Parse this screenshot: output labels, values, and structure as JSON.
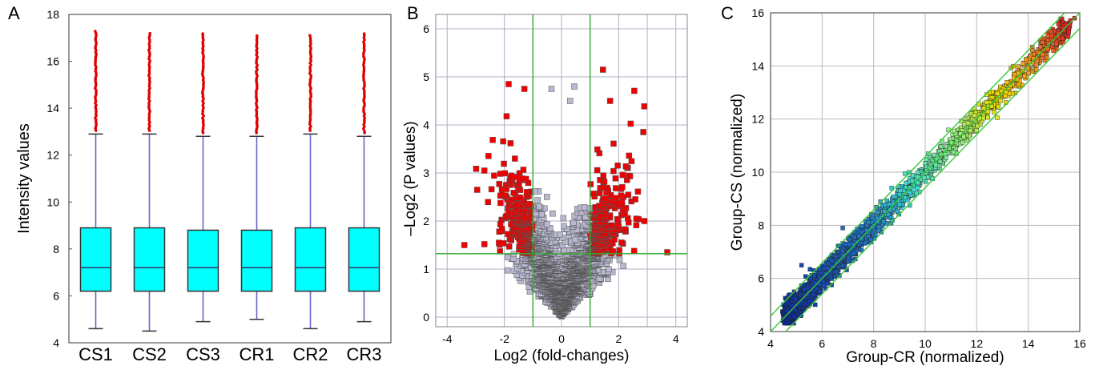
{
  "panels": [
    {
      "letter": "A"
    },
    {
      "letter": "B"
    },
    {
      "letter": "C"
    }
  ],
  "chart_data": [
    {
      "type": "box",
      "title": "",
      "xlabel": "",
      "ylabel": "Intensity values",
      "ylim": [
        4,
        18
      ],
      "yticks": [
        4,
        6,
        8,
        10,
        12,
        14,
        16,
        18
      ],
      "grid": false,
      "colors": {
        "box": "#00ffff",
        "whisker": "#6666cc",
        "outlier": "#e00000"
      },
      "categories": [
        "CS1",
        "CS2",
        "CS3",
        "CR1",
        "CR2",
        "CR3"
      ],
      "boxes": [
        {
          "name": "CS1",
          "whisker_low": 4.6,
          "q1": 6.2,
          "median": 7.2,
          "q3": 8.9,
          "whisker_high": 12.9,
          "outlier_max": 17.3
        },
        {
          "name": "CS2",
          "whisker_low": 4.5,
          "q1": 6.2,
          "median": 7.2,
          "q3": 8.9,
          "whisker_high": 12.9,
          "outlier_max": 17.2
        },
        {
          "name": "CS3",
          "whisker_low": 4.9,
          "q1": 6.2,
          "median": 7.2,
          "q3": 8.8,
          "whisker_high": 12.8,
          "outlier_max": 17.2
        },
        {
          "name": "CR1",
          "whisker_low": 5.0,
          "q1": 6.2,
          "median": 7.2,
          "q3": 8.8,
          "whisker_high": 12.8,
          "outlier_max": 17.1
        },
        {
          "name": "CR2",
          "whisker_low": 4.6,
          "q1": 6.2,
          "median": 7.2,
          "q3": 8.9,
          "whisker_high": 12.9,
          "outlier_max": 17.1
        },
        {
          "name": "CR3",
          "whisker_low": 4.9,
          "q1": 6.2,
          "median": 7.2,
          "q3": 8.9,
          "whisker_high": 12.8,
          "outlier_max": 17.2
        }
      ]
    },
    {
      "type": "scatter",
      "title": "",
      "xlabel": "Log2 (fold-changes)",
      "ylabel": "–Log2  (P values)",
      "xlim": [
        -4.4,
        4.4
      ],
      "ylim": [
        -0.2,
        6.3
      ],
      "xticks": [
        -4,
        -2,
        0,
        2,
        4
      ],
      "yticks": [
        0,
        1,
        2,
        3,
        4,
        5,
        6
      ],
      "grid": true,
      "thresholds": {
        "x": [
          -1,
          1
        ],
        "y": 1.32
      },
      "colors": {
        "significant": "#ee0000",
        "not_significant": "#b8b8d0",
        "threshold": "#33aa33",
        "grid": "#b0b0c8"
      },
      "series": [],
      "notable_points": [
        {
          "x": 1.45,
          "y": 5.15
        },
        {
          "x": -1.85,
          "y": 4.85
        },
        {
          "x": 0.45,
          "y": 4.8
        },
        {
          "x": -1.3,
          "y": 4.75
        },
        {
          "x": -0.35,
          "y": 4.75
        },
        {
          "x": 1.7,
          "y": 4.5
        },
        {
          "x": 0.3,
          "y": 4.5
        },
        {
          "x": -2.7,
          "y": 3.05
        },
        {
          "x": -2.95,
          "y": 2.65
        },
        {
          "x": 2.9,
          "y": 2.0
        },
        {
          "x": 3.7,
          "y": 1.35
        },
        {
          "x": -3.4,
          "y": 1.5
        }
      ]
    },
    {
      "type": "scatter",
      "title": "",
      "xlabel": "Group-CR (normalized)",
      "ylabel": "Group-CS (normalized)",
      "xlim": [
        4,
        16
      ],
      "ylim": [
        4,
        16
      ],
      "xticks": [
        4,
        6,
        8,
        10,
        12,
        14,
        16
      ],
      "yticks": [
        4,
        6,
        8,
        10,
        12,
        14,
        16
      ],
      "grid": true,
      "reference_lines": [
        {
          "slope": 1,
          "intercept": 0
        },
        {
          "slope": 1,
          "intercept": 0.585
        },
        {
          "slope": 1,
          "intercept": -0.585
        }
      ],
      "colors": {
        "low": "#1030a0",
        "mid": "#40e0d0",
        "high": "#f0e000",
        "top": "#dd2020",
        "reference": "#33cc33"
      },
      "series": [],
      "notable_points": [
        {
          "x": 15.8,
          "y": 15.8
        },
        {
          "x": 12.8,
          "y": 12.05
        },
        {
          "x": 5.2,
          "y": 6.5
        },
        {
          "x": 6.8,
          "y": 7.9
        }
      ]
    }
  ]
}
